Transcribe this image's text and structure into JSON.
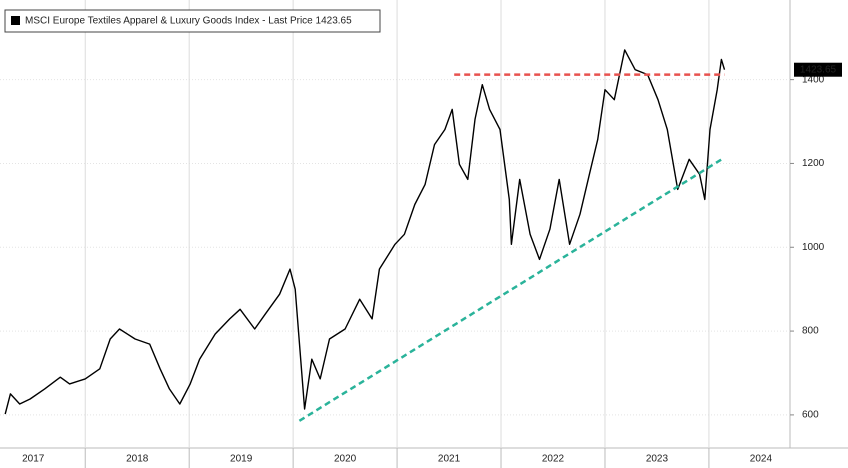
{
  "chart_data": {
    "type": "line",
    "series": [
      {
        "name": "MSCI Europe Textiles Apparel & Luxury Goods Index - Last Price 1423.65",
        "color": "#000000",
        "x": [
          2017.23,
          2017.28,
          2017.37,
          2017.47,
          2017.61,
          2017.76,
          2017.85,
          2018.0,
          2018.14,
          2018.24,
          2018.33,
          2018.48,
          2018.62,
          2018.72,
          2018.81,
          2018.91,
          2019.01,
          2019.1,
          2019.25,
          2019.39,
          2019.49,
          2019.63,
          2019.73,
          2019.87,
          2019.97,
          2020.02,
          2020.11,
          2020.18,
          2020.26,
          2020.35,
          2020.5,
          2020.64,
          2020.76,
          2020.83,
          2020.98,
          2021.07,
          2021.17,
          2021.27,
          2021.36,
          2021.46,
          2021.53,
          2021.6,
          2021.68,
          2021.75,
          2021.82,
          2021.89,
          2021.99,
          2022.08,
          2022.1,
          2022.18,
          2022.28,
          2022.37,
          2022.47,
          2022.56,
          2022.66,
          2022.76,
          2022.85,
          2022.93,
          2023.0,
          2023.09,
          2023.19,
          2023.29,
          2023.41,
          2023.51,
          2023.6,
          2023.7,
          2023.81,
          2023.91,
          2023.96,
          2024.01,
          2024.08,
          2024.12,
          2024.15
        ],
        "values": [
          602,
          650,
          626,
          638,
          662,
          690,
          674,
          686,
          710,
          781,
          805,
          781,
          769,
          710,
          662,
          626,
          674,
          733,
          793,
          829,
          852,
          805,
          840,
          888,
          948,
          900,
          614,
          733,
          686,
          781,
          805,
          876,
          829,
          948,
          1007,
          1031,
          1102,
          1150,
          1245,
          1281,
          1329,
          1198,
          1162,
          1305,
          1388,
          1329,
          1281,
          1114,
          1007,
          1162,
          1031,
          971,
          1043,
          1162,
          1007,
          1079,
          1174,
          1257,
          1376,
          1352,
          1471,
          1424,
          1412,
          1352,
          1281,
          1138,
          1210,
          1174,
          1114,
          1281,
          1376,
          1448,
          1423.65
        ]
      }
    ],
    "trend_lines": [
      {
        "color": "#e8524f",
        "x": [
          2021.55,
          2024.15
        ],
        "values": [
          1412,
          1412
        ]
      },
      {
        "color": "#2ab39a",
        "x": [
          2020.06,
          2024.15
        ],
        "values": [
          586,
          1214
        ]
      }
    ],
    "last_price": 1423.65,
    "xlim": [
      2017.18,
      2024.78
    ],
    "xticks": [
      2017,
      2018,
      2019,
      2020,
      2021,
      2022,
      2023,
      2024
    ],
    "ylim": [
      521,
      1590
    ],
    "yticks": [
      600,
      800,
      1000,
      1200,
      1400
    ],
    "grid": true
  }
}
